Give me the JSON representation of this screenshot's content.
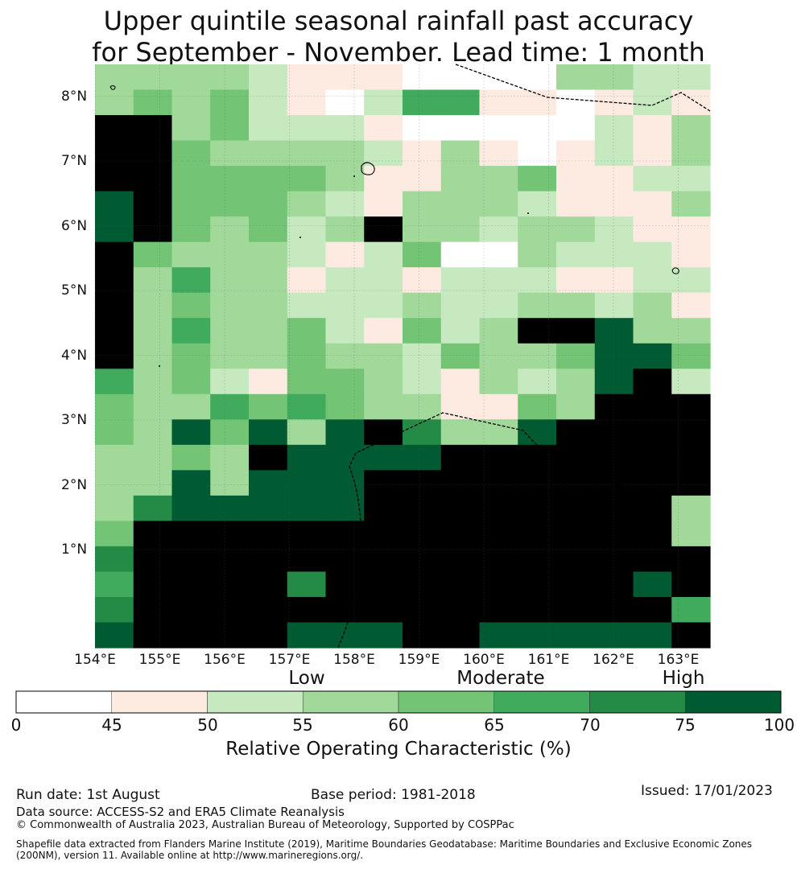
{
  "title": {
    "line1": "Upper quintile seasonal rainfall past accuracy",
    "line2": "for September - November. Lead time: 1 month"
  },
  "map": {
    "x_ticks": [
      "154°E",
      "155°E",
      "156°E",
      "157°E",
      "158°E",
      "159°E",
      "160°E",
      "161°E",
      "162°E",
      "163°E"
    ],
    "y_ticks": [
      "8°N",
      "7°N",
      "6°N",
      "5°N",
      "4°N",
      "3°N",
      "2°N",
      "1°N"
    ],
    "grid_rows": [
      "3333211100003322",
      "3434210255110121",
      "8834222100000213",
      "8843333213101213",
      "8844443113341122",
      "7844432133321113",
      "7843423833233211",
      "8433321240032221",
      "8353312212221122",
      "8343322232233231",
      "8353342142388733",
      "8343343324334774",
      "5342144321323782",
      "4335454331143888",
      "4374737863378888",
      "3343877778888888",
      "3373777888888888",
      "3677777888888883",
      "4888888888888883",
      "6888888888888888",
      "5888868888888878",
      "6888888888888885",
      "7888877788777778"
    ]
  },
  "colorbar": {
    "categories": [
      "Low",
      "Moderate",
      "High"
    ],
    "ticks": [
      "0",
      "45",
      "50",
      "55",
      "60",
      "65",
      "70",
      "75",
      "100"
    ],
    "title": "Relative Operating Characteristic (%)",
    "colors": [
      "#ffffff",
      "#fdeae1",
      "#c7e9c0",
      "#a1d99b",
      "#74c476",
      "#41ab5d",
      "#238b45",
      "#005a32"
    ]
  },
  "footer": {
    "run_date": "Run date: 1st August",
    "base_period": "Base period: 1981-2018",
    "issued": "Issued: 17/01/2023",
    "data_source": "Data source: ACCESS-S2 and ERA5 Climate Reanalysis",
    "copyright": "© Commonwealth of Australia 2023, Australian Bureau of Meteorology, Supported by COSPPac",
    "shapefile_line1": "Shapefile data extracted from Flanders Marine Institute (2019), Maritime Boundaries Geodatabase: Maritime Boundaries and Exclusive Economic Zones",
    "shapefile_line2": "(200NM), version 11. Available online at http://www.marineregions.org/."
  }
}
